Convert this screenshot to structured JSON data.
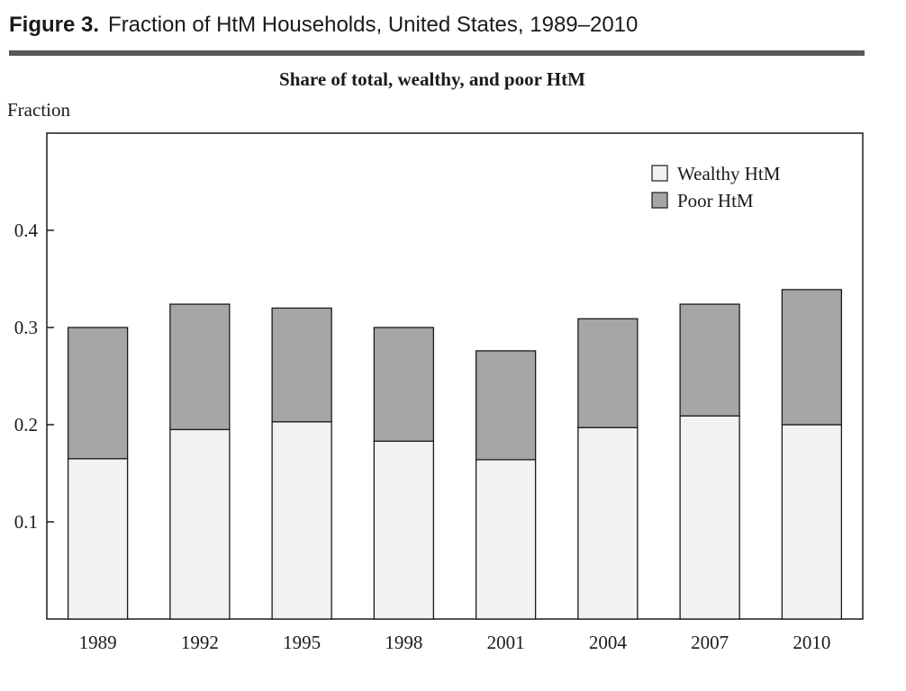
{
  "figure": {
    "label": "Figure 3.",
    "title": "Fraction of HtM Households, United States, 1989–2010"
  },
  "chart_data": {
    "type": "bar",
    "stacked": true,
    "title": "Share of total, wealthy, and poor HtM",
    "ylabel": "Fraction",
    "xlabel": "",
    "ylim": [
      0,
      0.5
    ],
    "yticks": [
      0.1,
      0.2,
      0.3,
      0.4
    ],
    "ytick_labels": [
      "0.1",
      "0.2",
      "0.3",
      "0.4"
    ],
    "categories": [
      "1989",
      "1992",
      "1995",
      "1998",
      "2001",
      "2004",
      "2007",
      "2010"
    ],
    "series": [
      {
        "name": "Wealthy HtM",
        "color": "#f2f2f2",
        "values": [
          0.165,
          0.195,
          0.203,
          0.183,
          0.164,
          0.197,
          0.209,
          0.2
        ]
      },
      {
        "name": "Poor HtM",
        "color": "#a6a6a6",
        "values": [
          0.135,
          0.129,
          0.117,
          0.117,
          0.112,
          0.112,
          0.115,
          0.139
        ]
      }
    ],
    "legend_position": "top-right",
    "grid": false
  }
}
